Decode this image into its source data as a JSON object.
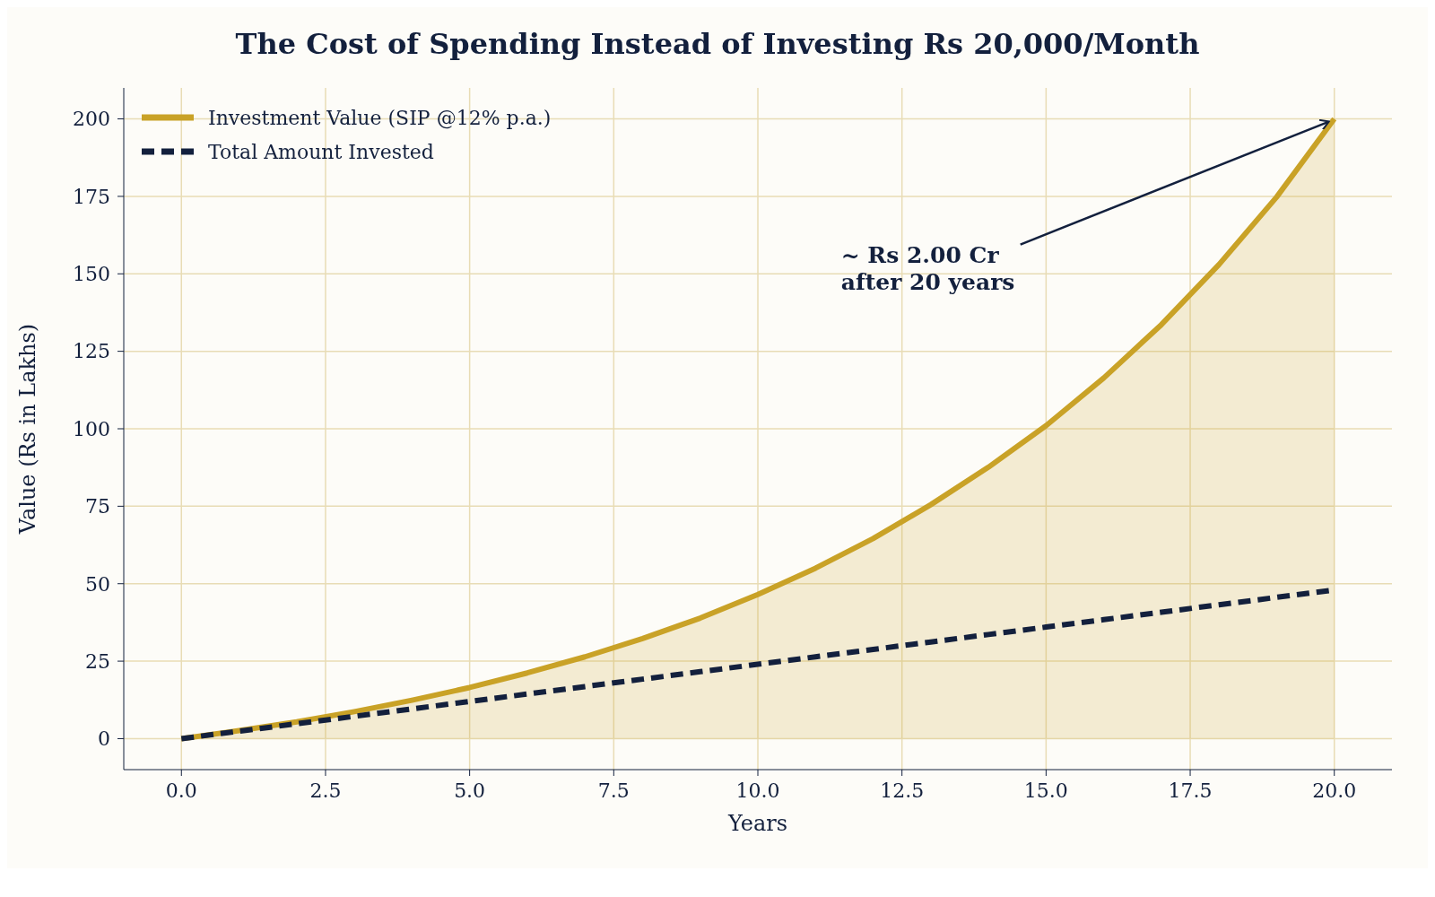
{
  "chart_data": {
    "type": "line",
    "title": "The Cost of Spending Instead of Investing Rs 20,000/Month",
    "xlabel": "Years",
    "ylabel": "Value (Rs in Lakhs)",
    "x": [
      0,
      1,
      2,
      3,
      4,
      5,
      6,
      7,
      8,
      9,
      10,
      11,
      12,
      13,
      14,
      15,
      16,
      17,
      18,
      19,
      20
    ],
    "series": [
      {
        "name": "Investment Value (SIP @12% p.a.)",
        "type": "area",
        "color": "#c9a227",
        "line_style": "solid",
        "values": [
          0,
          2.6,
          5.4,
          8.7,
          12.4,
          16.5,
          21.2,
          26.4,
          32.3,
          38.9,
          46.5,
          55,
          64.6,
          75.5,
          87.6,
          101,
          116.4,
          133.6,
          153,
          174.8,
          200
        ]
      },
      {
        "name": "Total Amount Invested",
        "type": "line",
        "color": "#13203d",
        "line_style": "dashed",
        "values": [
          0,
          2.4,
          4.8,
          7.2,
          9.6,
          12,
          14.4,
          16.8,
          19.2,
          21.6,
          24,
          26.4,
          28.8,
          31.2,
          33.6,
          36,
          38.4,
          40.8,
          43.2,
          45.6,
          48
        ]
      }
    ],
    "xlim": [
      -1,
      21
    ],
    "xticks": [
      {
        "value": 0,
        "label": "0.0"
      },
      {
        "value": 2.5,
        "label": "2.5"
      },
      {
        "value": 5,
        "label": "5.0"
      },
      {
        "value": 7.5,
        "label": "7.5"
      },
      {
        "value": 10,
        "label": "10.0"
      },
      {
        "value": 12.5,
        "label": "12.5"
      },
      {
        "value": 15,
        "label": "15.0"
      },
      {
        "value": 17.5,
        "label": "17.5"
      },
      {
        "value": 20,
        "label": "20.0"
      }
    ],
    "ylim": [
      -10,
      210
    ],
    "yticks": [
      0,
      25,
      50,
      75,
      100,
      125,
      150,
      175,
      200
    ],
    "annotations": [
      {
        "text": "~ Rs 2.00 Cr\nafter 20 years",
        "x": 20,
        "y": 200
      }
    ],
    "grid": true,
    "legend": "top left",
    "marker": "none"
  }
}
